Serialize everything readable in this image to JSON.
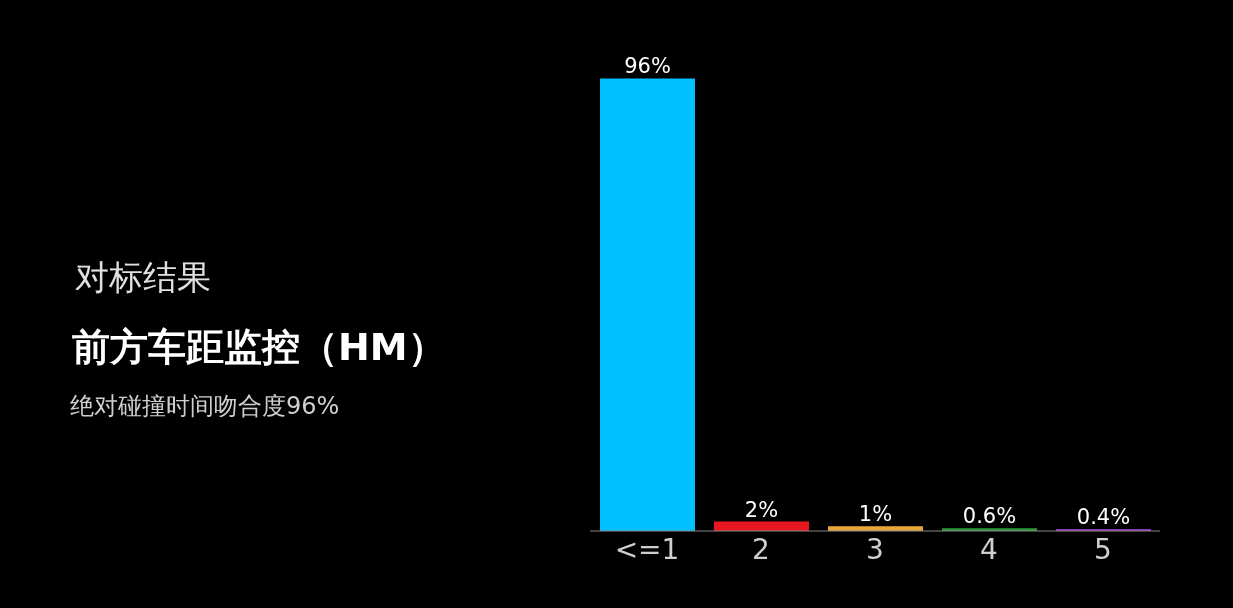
{
  "chart_data": {
    "type": "bar",
    "title": "前方车距监控（HM）",
    "subtitle": "绝对碰撞时间吻合度96%",
    "annotations": [
      "对标结果"
    ],
    "categories": [
      "<=1",
      "2",
      "3",
      "4",
      "5"
    ],
    "values": [
      96,
      2,
      1,
      0.6,
      0.4
    ],
    "colors": [
      "#00c0ff",
      "#e8161e",
      "#e8a838",
      "#2a9a3a",
      "#8a3ab8"
    ],
    "value_labels": [
      "96%",
      "2%",
      "1%",
      "0.6%",
      "0.4%"
    ],
    "tick_labels": "x"
  }
}
